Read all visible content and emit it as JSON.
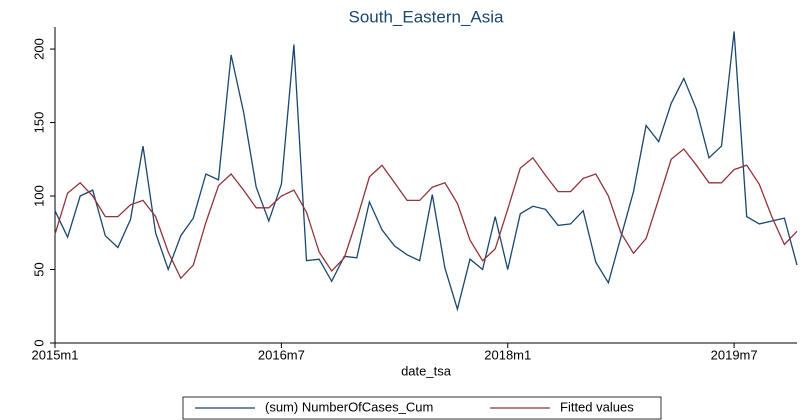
{
  "chart_data": {
    "type": "line",
    "title": "South_Eastern_Asia",
    "x_label": "date_tsa",
    "x": [
      660,
      661,
      662,
      663,
      664,
      665,
      666,
      667,
      668,
      669,
      670,
      671,
      672,
      673,
      674,
      675,
      676,
      677,
      678,
      679,
      680,
      681,
      682,
      683,
      684,
      685,
      686,
      687,
      688,
      689,
      690,
      691,
      692,
      693,
      694,
      695,
      696,
      697,
      698,
      699,
      700,
      701,
      702,
      703,
      704,
      705,
      706,
      707,
      708,
      709,
      710,
      711,
      712,
      713,
      714,
      715,
      716,
      717,
      718,
      719
    ],
    "xlim": [
      660,
      719
    ],
    "xticks": [
      {
        "value": 660,
        "label": "2015m1"
      },
      {
        "value": 678,
        "label": "2016m7"
      },
      {
        "value": 696,
        "label": "2018m1"
      },
      {
        "value": 714,
        "label": "2019m7"
      }
    ],
    "ylim": [
      0,
      215
    ],
    "yticks": [
      0,
      50,
      100,
      150,
      200
    ],
    "grid": false,
    "series": [
      {
        "name": "(sum) NumberOfCases_Cum",
        "color": "#1a476f",
        "values": [
          90,
          72,
          100,
          104,
          73,
          65,
          84,
          134,
          75,
          50,
          73,
          85,
          115,
          111,
          196,
          157,
          106,
          83,
          108,
          203,
          56,
          57,
          42,
          59,
          58,
          96,
          77,
          66,
          60,
          56,
          101,
          51,
          23,
          57,
          50,
          86,
          50,
          88,
          93,
          91,
          80,
          81,
          90,
          55,
          41,
          72,
          103,
          148,
          137,
          163,
          180,
          159,
          126,
          134,
          212,
          86,
          81,
          83,
          85,
          53
        ]
      },
      {
        "name": "Fitted values",
        "color": "#90353b",
        "values": [
          74,
          102,
          109,
          100,
          86,
          86,
          94,
          97,
          86,
          62,
          44,
          53,
          82,
          107,
          115,
          104,
          92,
          92,
          100,
          104,
          89,
          62,
          49,
          58,
          84,
          113,
          121,
          109,
          97,
          97,
          106,
          109,
          95,
          70,
          56,
          64,
          91,
          119,
          126,
          114,
          103,
          103,
          112,
          115,
          100,
          75,
          61,
          71,
          98,
          125,
          132,
          121,
          109,
          109,
          118,
          121,
          108,
          86,
          67,
          76
        ]
      }
    ]
  }
}
